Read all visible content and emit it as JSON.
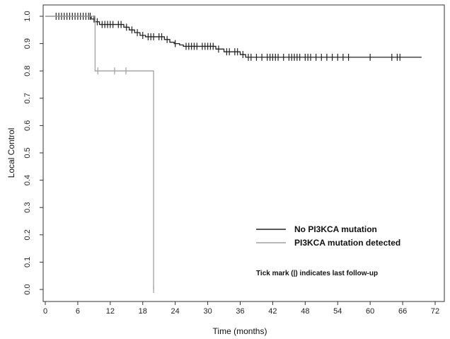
{
  "chart_data": {
    "type": "line",
    "step": true,
    "xlabel": "Time (months)",
    "ylabel": "Local Control",
    "xlim": [
      0,
      72
    ],
    "ylim": [
      0,
      1
    ],
    "xticks": [
      "0",
      "6",
      "12",
      "18",
      "24",
      "30",
      "36",
      "42",
      "48",
      "54",
      "60",
      "66",
      "72"
    ],
    "yticks": [
      "0.0",
      "0.1",
      "0.2",
      "0.3",
      "0.4",
      "0.5",
      "0.6",
      "0.7",
      "0.8",
      "0.9",
      "1.0"
    ],
    "grid": false,
    "legend_position": "bottom-right",
    "series": [
      {
        "name": "No PI3KCA mutation",
        "color": "#222222",
        "x": [
          0,
          8.5,
          9.2,
          10.0,
          14.5,
          15.5,
          16.5,
          17.5,
          18.5,
          22.0,
          23.0,
          23.8,
          24.8,
          25.5,
          31.5,
          33.0,
          36.0,
          37.0,
          69.5
        ],
        "y": [
          1.0,
          0.99,
          0.98,
          0.97,
          0.96,
          0.95,
          0.94,
          0.93,
          0.925,
          0.915,
          0.905,
          0.9,
          0.895,
          0.89,
          0.88,
          0.87,
          0.86,
          0.85,
          0.85
        ],
        "censor_x": [
          2,
          2.5,
          3,
          3.5,
          4,
          4.5,
          5,
          5.5,
          6,
          6.5,
          7,
          7.5,
          8,
          8.3,
          9,
          9.6,
          10.5,
          11,
          11.5,
          12,
          12.5,
          13.5,
          14,
          15,
          16,
          17,
          18,
          19,
          19.5,
          20,
          21,
          21.5,
          22.5,
          24,
          26,
          26.5,
          27,
          27.5,
          28,
          29,
          29.5,
          30,
          30.5,
          31,
          32,
          33.5,
          34,
          35,
          35.5,
          36.5,
          37.5,
          38,
          39,
          40,
          41,
          41.5,
          42,
          42.5,
          43,
          44,
          45,
          45.5,
          46,
          46.5,
          47,
          48,
          48.5,
          49,
          50,
          51,
          52,
          53,
          54,
          55,
          56,
          60,
          64,
          65,
          65.5
        ]
      },
      {
        "name": "PI3KCA mutation detected",
        "color": "#a0a0a0",
        "x": [
          0,
          9.2,
          20.0,
          20.0
        ],
        "y": [
          1.0,
          0.8,
          0.8,
          0.0
        ],
        "censor_x": [
          9.7,
          12.8,
          14.9,
          20.0
        ]
      }
    ],
    "legend": [
      "No PI3KCA mutation",
      "PI3KCA mutation detected"
    ],
    "annotation": "Tick mark (|) indicates last follow-up"
  }
}
